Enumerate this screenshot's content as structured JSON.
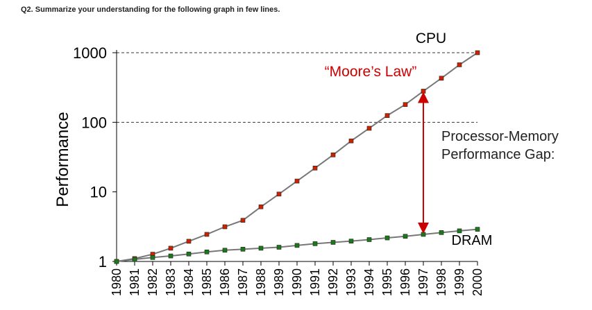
{
  "question": "Q2. Summarize your understanding for the following graph in few lines.",
  "chart_data": {
    "type": "line",
    "title": "",
    "xlabel": "",
    "ylabel": "Performance",
    "yscale": "log",
    "ylim": [
      1,
      1000
    ],
    "grid": false,
    "x": [
      1980,
      1981,
      1982,
      1983,
      1984,
      1985,
      1986,
      1987,
      1988,
      1989,
      1990,
      1991,
      1992,
      1993,
      1994,
      1995,
      1996,
      1997,
      1998,
      1999,
      2000
    ],
    "xticks": [
      "1980",
      "1981",
      "1982",
      "1983",
      "1984",
      "1985",
      "1986",
      "1987",
      "1988",
      "1989",
      "1990",
      "1991",
      "1992",
      "1993",
      "1994",
      "1995",
      "1996",
      "1997",
      "1998",
      "1999",
      "2000"
    ],
    "yticks": [
      {
        "value": 1,
        "label": "1"
      },
      {
        "value": 10,
        "label": "10"
      },
      {
        "value": 100,
        "label": "100"
      },
      {
        "value": 1000,
        "label": "1000"
      }
    ],
    "reference_lines": [
      100,
      1000
    ],
    "series": [
      {
        "name": "CPU",
        "color": "#cc2200",
        "values": [
          1,
          1.1,
          1.27,
          1.55,
          1.95,
          2.45,
          3.15,
          3.9,
          6.1,
          9.3,
          14.3,
          22,
          34,
          54,
          82,
          125,
          180,
          280,
          430,
          670,
          1000
        ]
      },
      {
        "name": "DRAM",
        "color": "#1a7a1a",
        "values": [
          1,
          1.07,
          1.14,
          1.2,
          1.28,
          1.37,
          1.45,
          1.5,
          1.55,
          1.6,
          1.7,
          1.8,
          1.88,
          1.96,
          2.06,
          2.18,
          2.3,
          2.45,
          2.6,
          2.75,
          2.9
        ]
      }
    ],
    "annotations": {
      "cpu_label": "CPU",
      "moores_law": "“Moore’s Law”",
      "gap_line1": "Processor-Memory",
      "gap_line2": "Performance Gap:",
      "dram_label": "DRAM",
      "gap_year": 1997
    }
  }
}
